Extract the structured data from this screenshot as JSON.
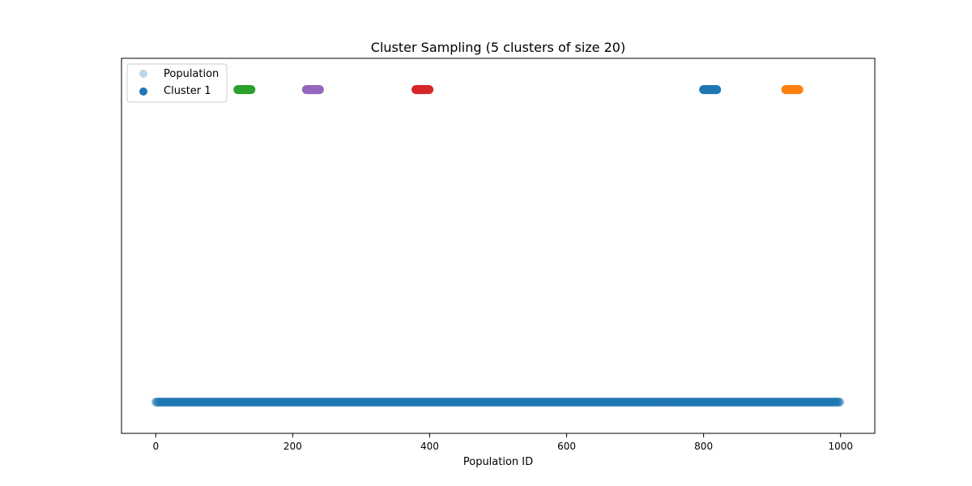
{
  "chart_data": {
    "type": "scatter",
    "title": "Cluster Sampling (5 clusters of size 20)",
    "xlabel": "Population ID",
    "ylabel": "",
    "xlim": [
      -50,
      1050
    ],
    "ylim": [
      -0.1,
      1.1
    ],
    "xticks": [
      0,
      200,
      400,
      600,
      800,
      1000
    ],
    "yticks": [],
    "grid": false,
    "legend_position": "upper-left",
    "population": {
      "name": "Population",
      "color": "#1f77b4",
      "alpha": 0.3,
      "x_start": 0,
      "x_end": 999,
      "y": 0
    },
    "clusters": [
      {
        "name": "Cluster 1",
        "color": "#1f77b4",
        "x_start": 800,
        "x_end": 819,
        "y": 1
      },
      {
        "name": "",
        "color": "#ff7f0e",
        "x_start": 920,
        "x_end": 939,
        "y": 1
      },
      {
        "name": "",
        "color": "#2ca02c",
        "x_start": 120,
        "x_end": 139,
        "y": 1
      },
      {
        "name": "",
        "color": "#d62728",
        "x_start": 380,
        "x_end": 399,
        "y": 1
      },
      {
        "name": "",
        "color": "#9467bd",
        "x_start": 220,
        "x_end": 239,
        "y": 1
      }
    ],
    "legend": [
      "Population",
      "Cluster 1"
    ]
  }
}
